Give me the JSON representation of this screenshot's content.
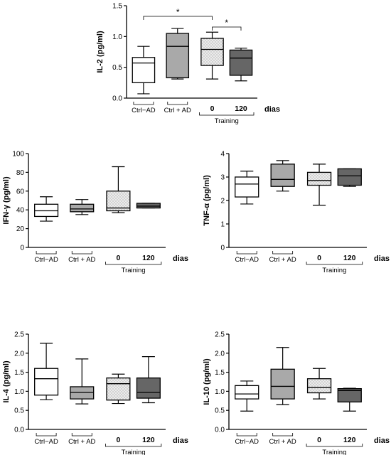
{
  "legend_unit": "dias",
  "group_label": "Training",
  "colors": {
    "ctrl_minus": "#ffffff",
    "ctrl_plus": "#a9a9a9",
    "training_0": "#ececec",
    "training_120": "#666666",
    "axis": "#000000"
  },
  "chart_data": [
    {
      "type": "box",
      "ylabel": "IL-2 (pg/ml)",
      "ylim": [
        0,
        1.5
      ],
      "yticks": [
        "0.0",
        "0.5",
        "1.0",
        "1.5"
      ],
      "categories": [
        "Ctrl−AD",
        "Ctrl + AD",
        "0",
        "120"
      ],
      "series": [
        {
          "min": 0.07,
          "q1": 0.25,
          "median": 0.57,
          "q3": 0.66,
          "max": 0.84
        },
        {
          "min": 0.31,
          "q1": 0.33,
          "median": 0.84,
          "q3": 1.05,
          "max": 1.13
        },
        {
          "min": 0.31,
          "q1": 0.53,
          "median": 0.79,
          "q3": 0.97,
          "max": 1.07
        },
        {
          "min": 0.28,
          "q1": 0.37,
          "median": 0.65,
          "q3": 0.78,
          "max": 0.81
        }
      ],
      "significance": [
        {
          "from": 0,
          "to": 2,
          "label": "*"
        },
        {
          "from": 2,
          "to": 3,
          "label": "*"
        }
      ]
    },
    {
      "type": "box",
      "ylabel": "IFN-γ (pg/ml)",
      "ylim": [
        0,
        100
      ],
      "yticks": [
        "0",
        "20",
        "40",
        "60",
        "80",
        "100"
      ],
      "categories": [
        "Ctrl−AD",
        "Ctrl + AD",
        "0",
        "120"
      ],
      "series": [
        {
          "min": 28,
          "q1": 33,
          "median": 39,
          "q3": 46,
          "max": 54
        },
        {
          "min": 35,
          "q1": 38,
          "median": 41,
          "q3": 46,
          "max": 51
        },
        {
          "min": 37,
          "q1": 39,
          "median": 42,
          "q3": 60,
          "max": 86
        },
        {
          "min": 42,
          "q1": 42,
          "median": 44,
          "q3": 47,
          "max": 47
        }
      ],
      "significance": []
    },
    {
      "type": "box",
      "ylabel": "TNF-α (pg/ml)",
      "ylim": [
        0,
        4
      ],
      "yticks": [
        "0",
        "1",
        "2",
        "3",
        "4"
      ],
      "categories": [
        "Ctrl−AD",
        "Ctrl + AD",
        "0",
        "120"
      ],
      "series": [
        {
          "min": 1.85,
          "q1": 2.15,
          "median": 2.7,
          "q3": 3.0,
          "max": 3.25
        },
        {
          "min": 2.4,
          "q1": 2.6,
          "median": 2.9,
          "q3": 3.55,
          "max": 3.7
        },
        {
          "min": 1.8,
          "q1": 2.65,
          "median": 2.85,
          "q3": 3.2,
          "max": 3.55
        },
        {
          "min": 2.6,
          "q1": 2.65,
          "median": 3.05,
          "q3": 3.35,
          "max": 3.35
        }
      ],
      "significance": []
    },
    {
      "type": "box",
      "ylabel": "IL-4 (pg/ml)",
      "ylim": [
        0,
        2.5
      ],
      "yticks": [
        "0.0",
        "0.5",
        "1.0",
        "1.5",
        "2.0",
        "2.5"
      ],
      "categories": [
        "Ctrl−AD",
        "Ctrl + AD",
        "0",
        "120"
      ],
      "series": [
        {
          "min": 0.78,
          "q1": 0.9,
          "median": 1.33,
          "q3": 1.6,
          "max": 2.26
        },
        {
          "min": 0.67,
          "q1": 0.8,
          "median": 0.97,
          "q3": 1.12,
          "max": 1.85
        },
        {
          "min": 0.68,
          "q1": 0.77,
          "median": 1.2,
          "q3": 1.35,
          "max": 1.45
        },
        {
          "min": 0.7,
          "q1": 0.82,
          "median": 0.97,
          "q3": 1.35,
          "max": 1.91
        }
      ],
      "significance": []
    },
    {
      "type": "box",
      "ylabel": "IL-10 (pg/ml)",
      "ylim": [
        0,
        2.5
      ],
      "yticks": [
        "0.0",
        "0.5",
        "1.0",
        "1.5",
        "2.0",
        "2.5"
      ],
      "categories": [
        "Ctrl−AD",
        "Ctrl + AD",
        "0",
        "120"
      ],
      "series": [
        {
          "min": 0.48,
          "q1": 0.8,
          "median": 0.93,
          "q3": 1.15,
          "max": 1.27
        },
        {
          "min": 0.65,
          "q1": 0.8,
          "median": 1.13,
          "q3": 1.58,
          "max": 2.15
        },
        {
          "min": 0.8,
          "q1": 0.96,
          "median": 1.1,
          "q3": 1.33,
          "max": 1.6
        },
        {
          "min": 0.48,
          "q1": 0.72,
          "median": 1.02,
          "q3": 1.07,
          "max": 1.08
        }
      ],
      "significance": []
    }
  ]
}
